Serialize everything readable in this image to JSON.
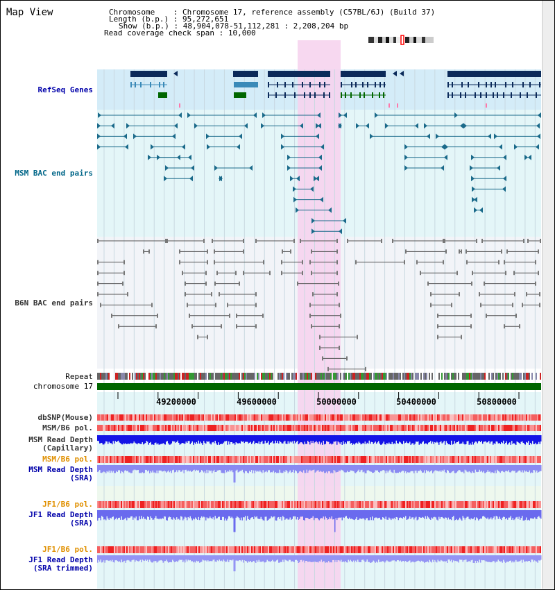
{
  "title": "Map View",
  "info": {
    "chromosome_label": "Chromosome",
    "chromosome_value": "Chromosome 17, reference assembly (C57BL/6J) (Build 37)",
    "length_label": "Length (b.p.)",
    "length_value": "95,272,651",
    "show_label": "Show (b.p.)",
    "show_value": "48,904,078-51,112,281 : 2,208,204 bp",
    "coverage_label": "Read coverage check span",
    "coverage_value": "10,000",
    "separator": ":"
  },
  "tracks": {
    "refseq": "RefSeq Genes",
    "msm_bac": "MSM BAC end pairs",
    "b6n_bac": "B6N BAC end pairs",
    "repeat": "Repeat",
    "chromosome": "chromosome 17",
    "dbsnp": "dbSNP(Mouse)",
    "msm_b6_pol": "MSM/B6 pol.",
    "msm_depth_cap_1": "MSM Read Depth",
    "msm_depth_cap_2": "(Capillary)",
    "msm_b6_pol_sra": "MSM/B6 pol.",
    "msm_depth_sra_1": "MSM Read Depth",
    "msm_depth_sra_2": "(SRA)",
    "jf1_b6_pol": "JF1/B6 pol.",
    "jf1_depth_sra_1": "JF1 Read Depth",
    "jf1_depth_sra_2": "(SRA)",
    "jf1_b6_pol_trim": "JF1/B6 pol.",
    "jf1_depth_trim_1": "JF1 Read Depth",
    "jf1_depth_trim_2": "(SRA trimmed)"
  },
  "axis": {
    "ticks": [
      "49200000",
      "49600000",
      "50000000",
      "50400000",
      "50800000"
    ]
  },
  "colors": {
    "refseq_bg": "#d4ecf8",
    "msm_bg": "#e4f6f8",
    "b6n_bg": "#f2f4f8",
    "highlight": "#f6d4ee",
    "gene_dark": "#0b2a5a",
    "gene_mid": "#3a8ab8",
    "gene_green": "#006600",
    "msm_pair": "#1a6a8a",
    "b6n_pair": "#555555",
    "chromosome_bar": "#006600",
    "snp_red": "#ee3333",
    "depth_blue": "#1414e6",
    "depth_light": "#6a6aee"
  }
}
